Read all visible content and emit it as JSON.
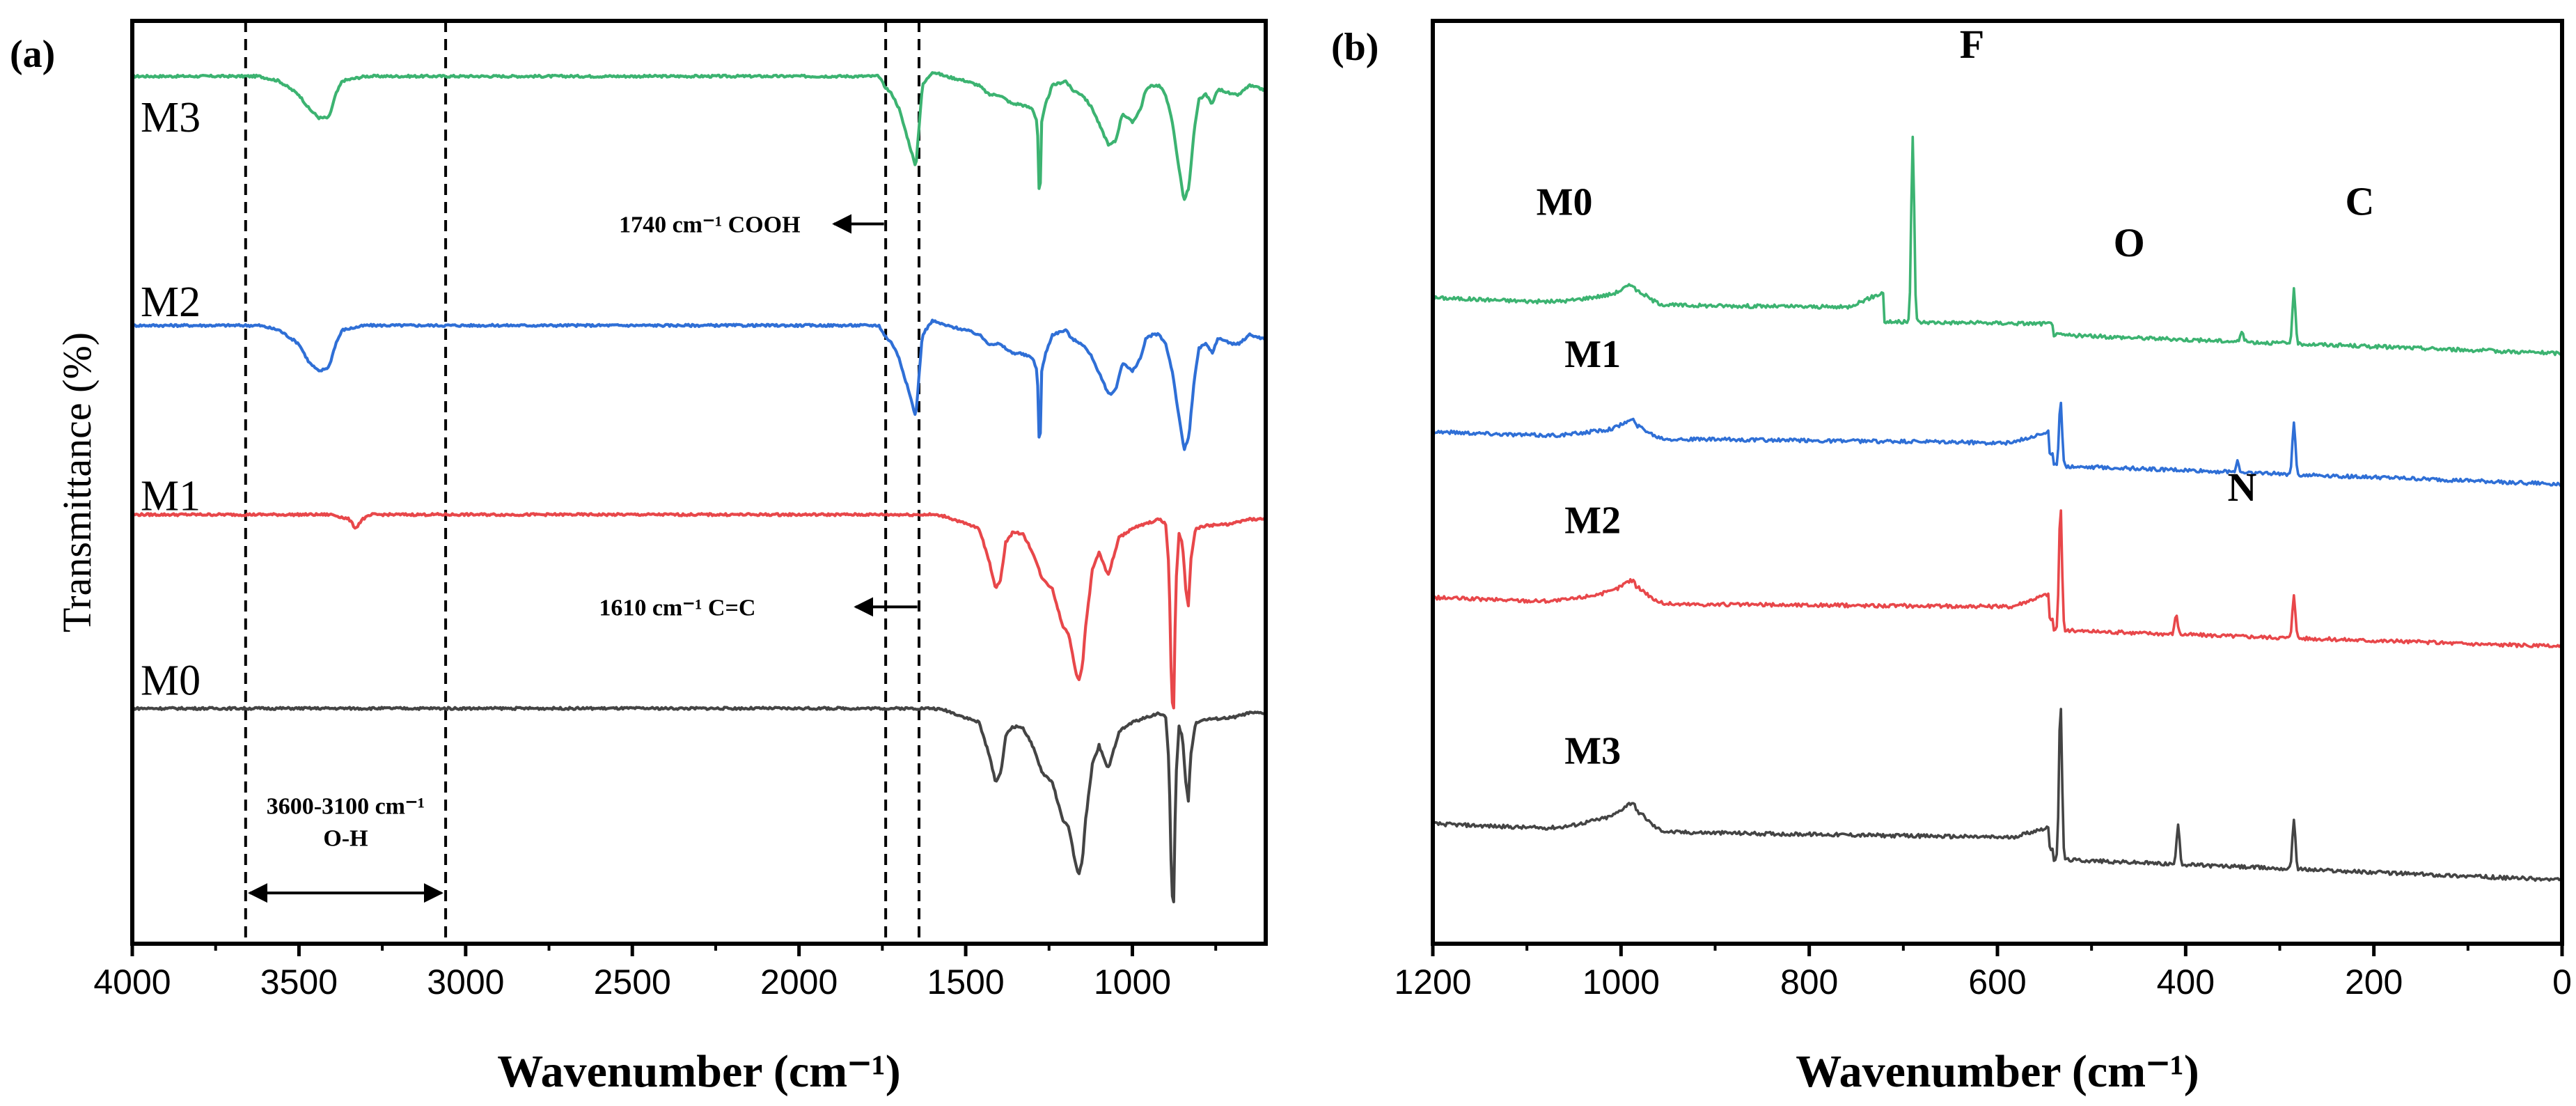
{
  "chart_data": [
    {
      "type": "line",
      "panel": "(a)",
      "title": "",
      "xlabel": "Wavenumber (cm⁻¹)",
      "ylabel": "Transmittance (%)",
      "xlim": [
        4000,
        600
      ],
      "x_reversed": true,
      "xticks": [
        "4000",
        "3500",
        "3000",
        "2500",
        "2000",
        "1500",
        "1000"
      ],
      "xtick_values": [
        4000,
        3500,
        3000,
        2500,
        2000,
        1500,
        1000
      ],
      "yticks": false,
      "series": [
        {
          "name": "M3",
          "color": "#3cb371",
          "baseline": 0.94,
          "points": [
            [
              4000,
              0
            ],
            [
              3620,
              0
            ],
            [
              3560,
              -0.005
            ],
            [
              3500,
              -0.02
            ],
            [
              3470,
              -0.035
            ],
            [
              3440,
              -0.045
            ],
            [
              3410,
              -0.045
            ],
            [
              3390,
              -0.02
            ],
            [
              3370,
              -0.005
            ],
            [
              3300,
              0
            ],
            [
              2000,
              0
            ],
            [
              1760,
              0
            ],
            [
              1745,
              -0.01
            ],
            [
              1720,
              -0.02
            ],
            [
              1700,
              -0.035
            ],
            [
              1680,
              -0.06
            ],
            [
              1660,
              -0.085
            ],
            [
              1650,
              -0.1
            ],
            [
              1640,
              -0.055
            ],
            [
              1630,
              -0.01
            ],
            [
              1600,
              0.005
            ],
            [
              1560,
              0
            ],
            [
              1500,
              -0.005
            ],
            [
              1460,
              -0.01
            ],
            [
              1430,
              -0.02
            ],
            [
              1400,
              -0.02
            ],
            [
              1380,
              -0.025
            ],
            [
              1360,
              -0.03
            ],
            [
              1340,
              -0.03
            ],
            [
              1300,
              -0.035
            ],
            [
              1285,
              -0.05
            ],
            [
              1278,
              -0.15
            ],
            [
              1272,
              -0.05
            ],
            [
              1260,
              -0.03
            ],
            [
              1240,
              -0.01
            ],
            [
              1200,
              -0.005
            ],
            [
              1180,
              -0.015
            ],
            [
              1150,
              -0.02
            ],
            [
              1120,
              -0.035
            ],
            [
              1090,
              -0.06
            ],
            [
              1070,
              -0.075
            ],
            [
              1050,
              -0.07
            ],
            [
              1030,
              -0.04
            ],
            [
              1000,
              -0.05
            ],
            [
              975,
              -0.035
            ],
            [
              960,
              -0.015
            ],
            [
              940,
              -0.01
            ],
            [
              920,
              -0.01
            ],
            [
              900,
              -0.02
            ],
            [
              880,
              -0.05
            ],
            [
              860,
              -0.1
            ],
            [
              845,
              -0.135
            ],
            [
              830,
              -0.12
            ],
            [
              815,
              -0.06
            ],
            [
              800,
              -0.025
            ],
            [
              780,
              -0.02
            ],
            [
              760,
              -0.03
            ],
            [
              745,
              -0.015
            ],
            [
              730,
              -0.015
            ],
            [
              700,
              -0.02
            ],
            [
              680,
              -0.02
            ],
            [
              650,
              -0.01
            ],
            [
              600,
              -0.015
            ]
          ]
        },
        {
          "name": "M2",
          "color": "#2f6fd6",
          "baseline": 0.67,
          "points": [
            [
              4000,
              0
            ],
            [
              3620,
              0
            ],
            [
              3560,
              -0.005
            ],
            [
              3500,
              -0.02
            ],
            [
              3470,
              -0.04
            ],
            [
              3440,
              -0.05
            ],
            [
              3410,
              -0.045
            ],
            [
              3390,
              -0.02
            ],
            [
              3370,
              -0.005
            ],
            [
              3300,
              0
            ],
            [
              2000,
              0
            ],
            [
              1760,
              0
            ],
            [
              1745,
              -0.01
            ],
            [
              1720,
              -0.02
            ],
            [
              1700,
              -0.035
            ],
            [
              1680,
              -0.06
            ],
            [
              1660,
              -0.085
            ],
            [
              1650,
              -0.1
            ],
            [
              1640,
              -0.055
            ],
            [
              1630,
              -0.01
            ],
            [
              1600,
              0.005
            ],
            [
              1560,
              0
            ],
            [
              1500,
              -0.005
            ],
            [
              1460,
              -0.01
            ],
            [
              1430,
              -0.02
            ],
            [
              1400,
              -0.02
            ],
            [
              1380,
              -0.025
            ],
            [
              1360,
              -0.03
            ],
            [
              1340,
              -0.03
            ],
            [
              1300,
              -0.035
            ],
            [
              1285,
              -0.05
            ],
            [
              1278,
              -0.15
            ],
            [
              1272,
              -0.05
            ],
            [
              1260,
              -0.03
            ],
            [
              1240,
              -0.01
            ],
            [
              1200,
              -0.005
            ],
            [
              1180,
              -0.015
            ],
            [
              1150,
              -0.02
            ],
            [
              1120,
              -0.035
            ],
            [
              1090,
              -0.06
            ],
            [
              1070,
              -0.075
            ],
            [
              1050,
              -0.07
            ],
            [
              1030,
              -0.04
            ],
            [
              1000,
              -0.05
            ],
            [
              975,
              -0.035
            ],
            [
              960,
              -0.015
            ],
            [
              940,
              -0.01
            ],
            [
              920,
              -0.01
            ],
            [
              900,
              -0.02
            ],
            [
              880,
              -0.05
            ],
            [
              860,
              -0.1
            ],
            [
              845,
              -0.135
            ],
            [
              830,
              -0.12
            ],
            [
              815,
              -0.06
            ],
            [
              800,
              -0.025
            ],
            [
              780,
              -0.02
            ],
            [
              760,
              -0.03
            ],
            [
              745,
              -0.015
            ],
            [
              730,
              -0.015
            ],
            [
              700,
              -0.02
            ],
            [
              680,
              -0.02
            ],
            [
              650,
              -0.01
            ],
            [
              600,
              -0.015
            ]
          ]
        },
        {
          "name": "M1",
          "color": "#e8474a",
          "baseline": 0.465,
          "points": [
            [
              4000,
              0
            ],
            [
              3400,
              0
            ],
            [
              3350,
              -0.005
            ],
            [
              3330,
              -0.015
            ],
            [
              3310,
              -0.005
            ],
            [
              3280,
              0
            ],
            [
              1600,
              0
            ],
            [
              1560,
              -0.002
            ],
            [
              1500,
              -0.01
            ],
            [
              1460,
              -0.015
            ],
            [
              1430,
              -0.05
            ],
            [
              1410,
              -0.08
            ],
            [
              1395,
              -0.07
            ],
            [
              1380,
              -0.03
            ],
            [
              1360,
              -0.02
            ],
            [
              1330,
              -0.02
            ],
            [
              1300,
              -0.04
            ],
            [
              1270,
              -0.07
            ],
            [
              1240,
              -0.08
            ],
            [
              1210,
              -0.12
            ],
            [
              1190,
              -0.13
            ],
            [
              1170,
              -0.17
            ],
            [
              1160,
              -0.18
            ],
            [
              1150,
              -0.165
            ],
            [
              1140,
              -0.12
            ],
            [
              1120,
              -0.06
            ],
            [
              1100,
              -0.04
            ],
            [
              1080,
              -0.06
            ],
            [
              1070,
              -0.065
            ],
            [
              1060,
              -0.05
            ],
            [
              1040,
              -0.025
            ],
            [
              1000,
              -0.015
            ],
            [
              960,
              -0.01
            ],
            [
              920,
              -0.005
            ],
            [
              900,
              -0.01
            ],
            [
              890,
              -0.06
            ],
            [
              882,
              -0.2
            ],
            [
              876,
              -0.21
            ],
            [
              870,
              -0.08
            ],
            [
              860,
              -0.02
            ],
            [
              850,
              -0.03
            ],
            [
              840,
              -0.08
            ],
            [
              832,
              -0.1
            ],
            [
              825,
              -0.05
            ],
            [
              810,
              -0.015
            ],
            [
              780,
              -0.012
            ],
            [
              700,
              -0.01
            ],
            [
              650,
              -0.005
            ],
            [
              600,
              -0.005
            ]
          ]
        },
        {
          "name": "M0",
          "color": "#444444",
          "baseline": 0.255,
          "points": [
            [
              4000,
              0
            ],
            [
              1600,
              0
            ],
            [
              1560,
              -0.002
            ],
            [
              1500,
              -0.01
            ],
            [
              1460,
              -0.015
            ],
            [
              1430,
              -0.05
            ],
            [
              1410,
              -0.08
            ],
            [
              1395,
              -0.07
            ],
            [
              1380,
              -0.03
            ],
            [
              1360,
              -0.02
            ],
            [
              1330,
              -0.02
            ],
            [
              1300,
              -0.04
            ],
            [
              1270,
              -0.07
            ],
            [
              1240,
              -0.08
            ],
            [
              1210,
              -0.12
            ],
            [
              1190,
              -0.13
            ],
            [
              1170,
              -0.17
            ],
            [
              1160,
              -0.18
            ],
            [
              1150,
              -0.165
            ],
            [
              1140,
              -0.12
            ],
            [
              1120,
              -0.06
            ],
            [
              1100,
              -0.04
            ],
            [
              1080,
              -0.06
            ],
            [
              1070,
              -0.065
            ],
            [
              1060,
              -0.05
            ],
            [
              1040,
              -0.025
            ],
            [
              1000,
              -0.015
            ],
            [
              960,
              -0.01
            ],
            [
              920,
              -0.005
            ],
            [
              900,
              -0.01
            ],
            [
              890,
              -0.06
            ],
            [
              882,
              -0.2
            ],
            [
              876,
              -0.21
            ],
            [
              870,
              -0.08
            ],
            [
              860,
              -0.02
            ],
            [
              850,
              -0.03
            ],
            [
              840,
              -0.08
            ],
            [
              832,
              -0.1
            ],
            [
              825,
              -0.05
            ],
            [
              810,
              -0.015
            ],
            [
              780,
              -0.012
            ],
            [
              700,
              -0.01
            ],
            [
              650,
              -0.005
            ],
            [
              600,
              -0.005
            ]
          ]
        }
      ],
      "label_x": 3975,
      "label_y": [
        0.88,
        0.68,
        0.47,
        0.27
      ],
      "dashed_lines_x": [
        3660,
        3060,
        1740,
        1640
      ],
      "annotations": [
        {
          "text": "1740 cm⁻¹  COOH",
          "x_end": 2540,
          "x_data": 1880,
          "arrow_to": 1895,
          "arrow_from": 1745,
          "y": 0.78
        },
        {
          "text": "1610 cm⁻¹  C=C",
          "x_end": 2600,
          "x_data": 1810,
          "arrow_to": 1830,
          "arrow_from": 1645,
          "y": 0.365
        },
        {
          "text": "3600-3100 cm⁻¹",
          "x_center": 3360,
          "y": 0.15
        },
        {
          "text": "O-H",
          "x_center": 3360,
          "y": 0.115
        }
      ],
      "double_arrow": {
        "from": 3660,
        "to": 3060,
        "y": 0.055
      }
    },
    {
      "type": "line",
      "panel": "(b)",
      "title": "",
      "xlabel": "Wavenumber (cm⁻¹)",
      "ylabel": "",
      "xlim": [
        1200,
        0
      ],
      "x_reversed": true,
      "xticks": [
        "1200",
        "1000",
        "800",
        "600",
        "400",
        "200",
        "0"
      ],
      "xtick_values": [
        1200,
        1000,
        800,
        600,
        400,
        200,
        0
      ],
      "yticks": false,
      "series": [
        {
          "name": "M0",
          "color": "#3cb371",
          "base_left": 0.7,
          "base_right": 0.655,
          "hump": 0.015,
          "shoulder": 0.028,
          "peaks": [
            [
              690,
              0.2
            ],
            [
              340,
              0.012
            ],
            [
              285,
              0.058
            ]
          ]
        },
        {
          "name": "M1",
          "color": "#2f6fd6",
          "base_left": 0.555,
          "base_right": 0.51,
          "hump": 0.014,
          "shoulder": 0.022,
          "peaks": [
            [
              533,
              0.07
            ],
            [
              345,
              0.012
            ],
            [
              285,
              0.058
            ]
          ]
        },
        {
          "name": "M2",
          "color": "#e8474a",
          "base_left": 0.375,
          "base_right": 0.335,
          "hump": 0.018,
          "shoulder": 0.024,
          "peaks": [
            [
              533,
              0.135
            ],
            [
              410,
              0.022
            ],
            [
              285,
              0.048
            ]
          ]
        },
        {
          "name": "M3",
          "color": "#444444",
          "base_left": 0.13,
          "base_right": 0.08,
          "hump": 0.022,
          "shoulder": 0.02,
          "peaks": [
            [
              533,
              0.17
            ],
            [
              408,
              0.045
            ],
            [
              285,
              0.055
            ]
          ]
        }
      ],
      "series_labels": [
        {
          "text": "M0",
          "x": 1090,
          "y": 0.79
        },
        {
          "text": "M1",
          "x": 1060,
          "y": 0.625
        },
        {
          "text": "M2",
          "x": 1060,
          "y": 0.445
        },
        {
          "text": "M3",
          "x": 1060,
          "y": 0.195
        }
      ],
      "element_labels": [
        {
          "text": "F",
          "x": 627,
          "y": 0.96
        },
        {
          "text": "O",
          "x": 460,
          "y": 0.745
        },
        {
          "text": "C",
          "x": 215,
          "y": 0.79
        },
        {
          "text": "N",
          "x": 340,
          "y": 0.48
        }
      ]
    }
  ]
}
